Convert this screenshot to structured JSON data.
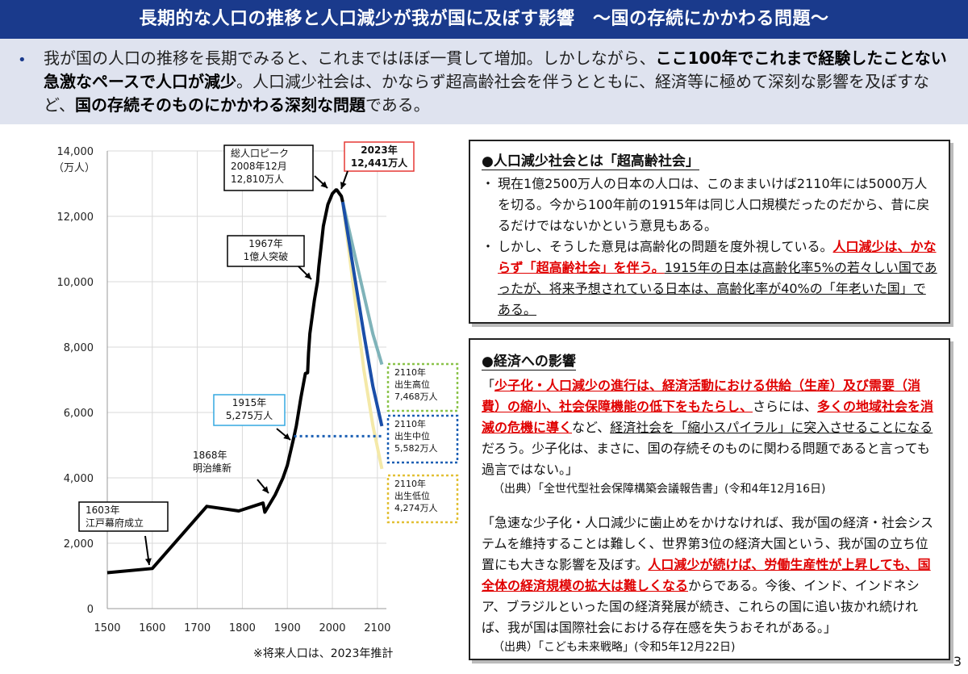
{
  "title": "長期的な人口の推移と人口減少が我が国に及ぼす影響　～国の存続にかかわる問題～",
  "lead": {
    "bullet": "•",
    "t1": "我が国の人口の推移を長期でみると、これまではほぼ一貫して増加。しかしながら、",
    "b1": "ここ100年でこれまで経験したことない急激なペースで人口が減少",
    "t2": "。人口減少社会は、かならず超高齢社会を伴うとともに、経済等に極めて深刻な影響を及ぼすなど、",
    "b2": "国の存続そのものにかかわる深刻な問題",
    "t3": "である。"
  },
  "chart_data": {
    "type": "line",
    "ylabel": "（万人）",
    "ylim": [
      0,
      14000
    ],
    "xlim": [
      1500,
      2120
    ],
    "yticks": [
      "14,000",
      "12,000",
      "10,000",
      "8,000",
      "6,000",
      "4,000",
      "2,000",
      "0"
    ],
    "xticks": [
      "1500",
      "1600",
      "1700",
      "1800",
      "1900",
      "2000",
      "2100"
    ],
    "series": [
      {
        "x": [
          1500,
          1600,
          1721,
          1792,
          1846,
          1850,
          1873,
          1890,
          1900,
          1915,
          1920,
          1930,
          1940,
          1945,
          1947,
          1950,
          1960,
          1967,
          1970,
          1980,
          1990,
          2000,
          2008,
          2010,
          2015,
          2020,
          2023
        ],
        "y": [
          1100,
          1227,
          3128,
          2987,
          3230,
          2950,
          3481,
          3990,
          4385,
          5275,
          5596,
          6445,
          7193,
          7215,
          7810,
          8411,
          9430,
          10000,
          10467,
          11706,
          12361,
          12693,
          12810,
          12806,
          12709,
          12615,
          12441
        ]
      },
      {
        "x": [
          2023,
          2050,
          2070,
          2090,
          2110
        ],
        "y": [
          12441,
          10800,
          9600,
          8400,
          7468
        ]
      },
      {
        "x": [
          2023,
          2050,
          2070,
          2090,
          2110
        ],
        "y": [
          12441,
          10100,
          8400,
          6800,
          5582
        ]
      },
      {
        "x": [
          2023,
          2050,
          2070,
          2090,
          2110
        ],
        "y": [
          12441,
          9500,
          7300,
          5600,
          4274
        ]
      }
    ],
    "series_colors": [
      "#000000",
      "#7fb3b9",
      "#1a4ea8",
      "#f4e9a8"
    ],
    "reference_line": {
      "x": [
        1915,
        2110
      ],
      "y": [
        5275,
        5275
      ]
    },
    "callouts": [
      {
        "lines": [
          "1603年",
          "江戸幕府成立"
        ],
        "x": 1603,
        "y": 1227
      },
      {
        "lines": [
          "1868年",
          "明治維新"
        ],
        "x": 1868,
        "y": 3400
      },
      {
        "lines": [
          "1915年",
          "5,275万人"
        ],
        "x": 1915,
        "y": 5275
      },
      {
        "lines": [
          "1967年",
          "1億人突破"
        ],
        "x": 1967,
        "y": 10000
      },
      {
        "lines": [
          "総人口ピーク",
          "2008年12月",
          "12,810万人"
        ],
        "x": 2008,
        "y": 12810
      },
      {
        "lines": [
          "2023年",
          "12,441万人"
        ],
        "x": 2023,
        "y": 12441
      },
      {
        "lines": [
          "2110年",
          "出生高位",
          "7,468万人"
        ],
        "x": 2110,
        "y": 7468
      },
      {
        "lines": [
          "2110年",
          "出生中位",
          "5,582万人"
        ],
        "x": 2110,
        "y": 5582
      },
      {
        "lines": [
          "2110年",
          "出生低位",
          "4,274万人"
        ],
        "x": 2110,
        "y": 4274
      }
    ]
  },
  "footnote": "※将来人口は、2023年推計",
  "panel1": {
    "heading": "●人口減少社会とは「超高齢社会」",
    "item1_dot": "・",
    "item1": "現在1億2500万人の日本の人口は、このままいけば2110年には5000万人を切る。今から100年前の1915年は同じ人口規模だったのだから、昔に戻るだけではないかという意見もある。",
    "item2_dot": "・",
    "item2_a": "しかし、そうした意見は高齢化の問題を度外視している。",
    "item2_red": "人口減少は、かならず「超高齢社会」を伴う。",
    "item2_b": "1915年の日本は高齢化率5%の若々しい国であったが、将来予想されている日本は、高齢化率が40%の「年老いた国」である。"
  },
  "panel2": {
    "heading": "●経済への影響",
    "q1_open": "「",
    "q1_red1": "少子化・人口減少の進行は、経済活動における供給（生産）及び需要（消費）の縮小、社会保障機能の低下をもたらし、",
    "q1_t1": "さらには、",
    "q1_red2": "多くの地域社会を消滅の危機に導く",
    "q1_t2": "など、",
    "q1_u": "経済社会を「縮小スパイラル」に突入させることになる",
    "q1_t3": "だろう。少子化は、まさに、国の存続そのものに関わる問題であると言っても過言ではない。」",
    "src1": "（出典）「全世代型社会保障構築会議報告書」(令和4年12月16日)",
    "q2_t1": "「急速な少子化・人口減少に歯止めをかけなければ、我が国の経済・社会システムを維持することは難しく、世界第3位の経済大国という、我が国の立ち位置にも大きな影響を及ぼす。",
    "q2_red": "人口減少が続けば、労働生産性が上昇しても、国全体の経済規模の拡大は難しくなる",
    "q2_t2": "からである。今後、インド、インドネシア、ブラジルといった国の経済発展が続き、これらの国に追い抜かれ続ければ、我が国は国際社会における存在感を失うおそれがある。」",
    "src2": "（出典）「こども未来戦略」(令和5年12月22日)"
  },
  "page_number": "3"
}
